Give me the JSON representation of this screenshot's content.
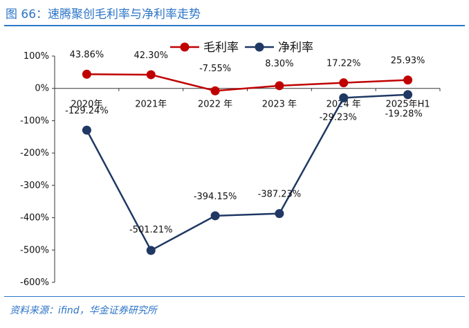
{
  "header": {
    "title": "图 66：速腾聚创毛利率与净利率走势"
  },
  "footer": {
    "source": "资料来源：ifind，华金证券研究所"
  },
  "colors": {
    "accent": "#2b74c7",
    "gross": "#c00000",
    "net": "#1f3864"
  },
  "chart_data": {
    "type": "line",
    "categories": [
      "2020年",
      "2021年",
      "2022 年",
      "2023 年",
      "2024 年",
      "2025年H1"
    ],
    "series": [
      {
        "name": "毛利率",
        "values": [
          43.86,
          42.3,
          -7.55,
          8.3,
          17.22,
          25.93
        ],
        "labels": [
          "43.86%",
          "42.30%",
          "-7.55%",
          "8.30%",
          "17.22%",
          "25.93%"
        ]
      },
      {
        "name": "净利率",
        "values": [
          -129.24,
          -501.21,
          -394.15,
          -387.23,
          -29.23,
          -19.28
        ],
        "labels": [
          "-129.24%",
          "-501.21%",
          "-394.15%",
          "-387.23%",
          "-29.23%",
          "-19.28%"
        ]
      }
    ],
    "yticks": [
      "100%",
      "0%",
      "-100%",
      "-200%",
      "-300%",
      "-400%",
      "-500%",
      "-600%"
    ],
    "ylim": [
      -600,
      100
    ],
    "grid": false,
    "legend": "top-right"
  }
}
